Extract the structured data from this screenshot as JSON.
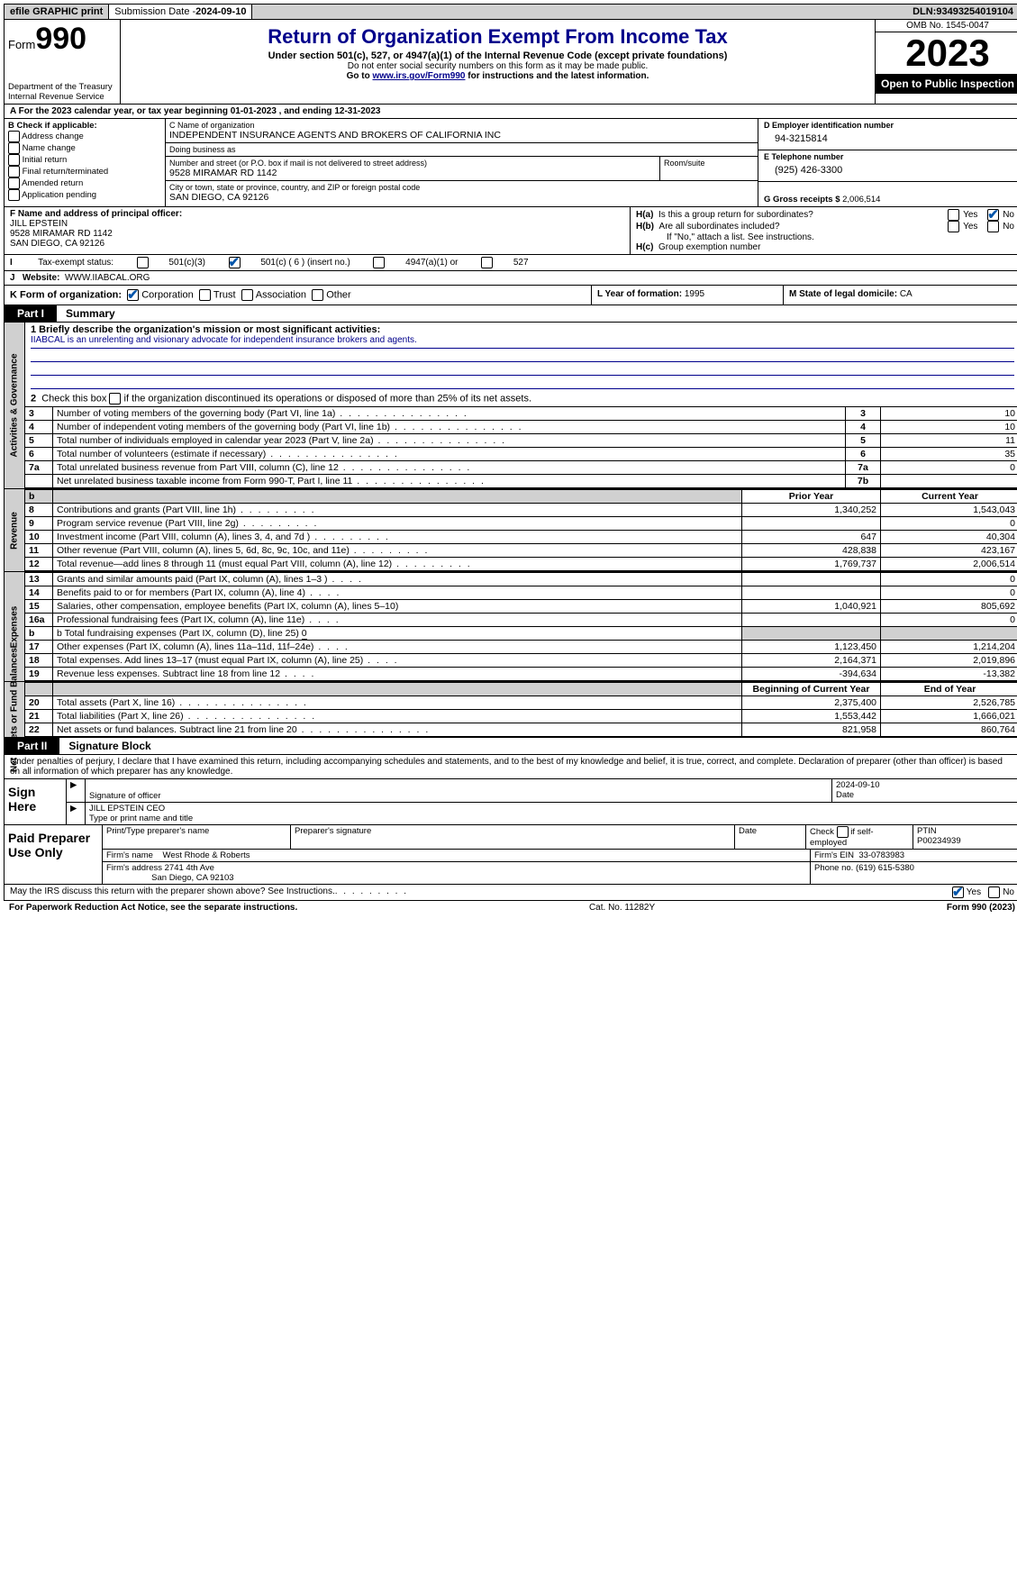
{
  "topbar": {
    "efile": "efile GRAPHIC print",
    "sub_label": "Submission Date - ",
    "sub_date": "2024-09-10",
    "dln_label": "DLN: ",
    "dln": "93493254019104"
  },
  "header": {
    "form_word": "Form",
    "form_num": "990",
    "dept": "Department of the Treasury Internal Revenue Service",
    "title": "Return of Organization Exempt From Income Tax",
    "subtitle": "Under section 501(c), 527, or 4947(a)(1) of the Internal Revenue Code (except private foundations)",
    "note1": "Do not enter social security numbers on this form as it may be made public.",
    "note2_pre": "Go to ",
    "note2_link": "www.irs.gov/Form990",
    "note2_post": " for instructions and the latest information.",
    "omb": "OMB No. 1545-0047",
    "year": "2023",
    "open": "Open to Public Inspection"
  },
  "rowA": "A  For the 2023 calendar year, or tax year beginning 01-01-2023    , and ending 12-31-2023",
  "boxB": {
    "title": "B Check if applicable:",
    "items": [
      "Address change",
      "Name change",
      "Initial return",
      "Final return/terminated",
      "Amended return",
      "Application pending"
    ]
  },
  "boxC": {
    "name_lbl": "C Name of organization",
    "name": "INDEPENDENT INSURANCE AGENTS AND BROKERS OF CALIFORNIA INC",
    "dba_lbl": "Doing business as",
    "dba": "",
    "street_lbl": "Number and street (or P.O. box if mail is not delivered to street address)",
    "street": "9528 MIRAMAR RD 1142",
    "room_lbl": "Room/suite",
    "city_lbl": "City or town, state or province, country, and ZIP or foreign postal code",
    "city": "SAN DIEGO, CA  92126"
  },
  "boxD": {
    "lbl": "D Employer identification number",
    "val": "94-3215814"
  },
  "boxE": {
    "lbl": "E Telephone number",
    "val": "(925) 426-3300"
  },
  "boxG": {
    "lbl": "G Gross receipts $ ",
    "val": "2,006,514"
  },
  "boxF": {
    "lbl": "F  Name and address of principal officer:",
    "name": "JILL EPSTEIN",
    "addr1": "9528 MIRAMAR RD 1142",
    "addr2": "SAN DIEGO, CA  92126"
  },
  "boxH": {
    "a": "H(a)  Is this a group return for subordinates?",
    "b": "H(b)  Are all subordinates included?",
    "b_note": "If \"No,\" attach a list. See instructions.",
    "c": "H(c)  Group exemption number",
    "yes": "Yes",
    "no": "No"
  },
  "rowI": {
    "label": "Tax-exempt status:",
    "o1": "501(c)(3)",
    "o2": "501(c) ( 6 ) (insert no.)",
    "o3": "4947(a)(1) or",
    "o4": "527"
  },
  "rowJ": {
    "label": "Website:",
    "val": "WWW.IIABCAL.ORG"
  },
  "rowK": {
    "label": "K Form of organization:",
    "opts": [
      "Corporation",
      "Trust",
      "Association",
      "Other"
    ],
    "l_label": "L Year of formation: ",
    "l_val": "1995",
    "m_label": "M State of legal domicile: ",
    "m_val": "CA"
  },
  "part1": {
    "tag": "Part I",
    "title": "Summary"
  },
  "gov": {
    "vlabel": "Activities & Governance",
    "line1_lbl": "1   Briefly describe the organization's mission or most significant activities:",
    "line1_val": "IIABCAL is an unrelenting and visionary advocate for independent insurance brokers and agents.",
    "line2": "2   Check this box      if the organization discontinued its operations or disposed of more than 25% of its net assets.",
    "rows": [
      {
        "n": "3",
        "d": "Number of voting members of the governing body (Part VI, line 1a)",
        "k": "3",
        "v": "10"
      },
      {
        "n": "4",
        "d": "Number of independent voting members of the governing body (Part VI, line 1b)",
        "k": "4",
        "v": "10"
      },
      {
        "n": "5",
        "d": "Total number of individuals employed in calendar year 2023 (Part V, line 2a)",
        "k": "5",
        "v": "11"
      },
      {
        "n": "6",
        "d": "Total number of volunteers (estimate if necessary)",
        "k": "6",
        "v": "35"
      },
      {
        "n": "7a",
        "d": "Total unrelated business revenue from Part VIII, column (C), line 12",
        "k": "7a",
        "v": "0"
      },
      {
        "n": "",
        "d": "Net unrelated business taxable income from Form 990-T, Part I, line 11",
        "k": "7b",
        "v": ""
      }
    ]
  },
  "rev": {
    "vlabel": "Revenue",
    "head_prior": "Prior Year",
    "head_curr": "Current Year",
    "rows": [
      {
        "n": "8",
        "d": "Contributions and grants (Part VIII, line 1h)",
        "p": "1,340,252",
        "c": "1,543,043"
      },
      {
        "n": "9",
        "d": "Program service revenue (Part VIII, line 2g)",
        "p": "",
        "c": "0"
      },
      {
        "n": "10",
        "d": "Investment income (Part VIII, column (A), lines 3, 4, and 7d )",
        "p": "647",
        "c": "40,304"
      },
      {
        "n": "11",
        "d": "Other revenue (Part VIII, column (A), lines 5, 6d, 8c, 9c, 10c, and 11e)",
        "p": "428,838",
        "c": "423,167"
      },
      {
        "n": "12",
        "d": "Total revenue—add lines 8 through 11 (must equal Part VIII, column (A), line 12)",
        "p": "1,769,737",
        "c": "2,006,514"
      }
    ]
  },
  "exp": {
    "vlabel": "Expenses",
    "rows": [
      {
        "n": "13",
        "d": "Grants and similar amounts paid (Part IX, column (A), lines 1–3 )",
        "p": "",
        "c": "0",
        "dot": "xs"
      },
      {
        "n": "14",
        "d": "Benefits paid to or for members (Part IX, column (A), line 4)",
        "p": "",
        "c": "0",
        "dot": "xs"
      },
      {
        "n": "15",
        "d": "Salaries, other compensation, employee benefits (Part IX, column (A), lines 5–10)",
        "p": "1,040,921",
        "c": "805,692",
        "dot": ""
      },
      {
        "n": "16a",
        "d": "Professional fundraising fees (Part IX, column (A), line 11e)",
        "p": "",
        "c": "0",
        "dot": "xs"
      }
    ],
    "line_b": "b   Total fundraising expenses (Part IX, column (D), line 25) ",
    "line_b_val": "0",
    "rows2": [
      {
        "n": "17",
        "d": "Other expenses (Part IX, column (A), lines 11a–11d, 11f–24e)",
        "p": "1,123,450",
        "c": "1,214,204"
      },
      {
        "n": "18",
        "d": "Total expenses. Add lines 13–17 (must equal Part IX, column (A), line 25)",
        "p": "2,164,371",
        "c": "2,019,896"
      },
      {
        "n": "19",
        "d": "Revenue less expenses. Subtract line 18 from line 12",
        "p": "-394,634",
        "c": "-13,382"
      }
    ]
  },
  "net": {
    "vlabel": "Net Assets or Fund Balances",
    "head_beg": "Beginning of Current Year",
    "head_end": "End of Year",
    "rows": [
      {
        "n": "20",
        "d": "Total assets (Part X, line 16)",
        "p": "2,375,400",
        "c": "2,526,785"
      },
      {
        "n": "21",
        "d": "Total liabilities (Part X, line 26)",
        "p": "1,553,442",
        "c": "1,666,021"
      },
      {
        "n": "22",
        "d": "Net assets or fund balances. Subtract line 21 from line 20",
        "p": "821,958",
        "c": "860,764"
      }
    ]
  },
  "part2": {
    "tag": "Part II",
    "title": "Signature Block"
  },
  "sig_decl": "Under penalties of perjury, I declare that I have examined this return, including accompanying schedules and statements, and to the best of my knowledge and belief, it is true, correct, and complete. Declaration of preparer (other than officer) is based on all information of which preparer has any knowledge.",
  "sign": {
    "here": "Sign Here",
    "sig_of": "Signature of officer",
    "date": "Date",
    "date_val": "2024-09-10",
    "name": "JILL EPSTEIN  CEO",
    "type": "Type or print name and title"
  },
  "paid": {
    "label": "Paid Preparer Use Only",
    "h1": "Print/Type preparer's name",
    "h2": "Preparer's signature",
    "h3": "Date",
    "h4_pre": "Check",
    "h4_post": "if self-employed",
    "h5": "PTIN",
    "ptin": "P00234939",
    "firm_name_lbl": "Firm's name",
    "firm_name": "West Rhode & Roberts",
    "firm_ein_lbl": "Firm's EIN",
    "firm_ein": "33-0783983",
    "firm_addr_lbl": "Firm's address",
    "firm_addr1": "2741 4th Ave",
    "firm_addr2": "San Diego, CA  92103",
    "phone_lbl": "Phone no.",
    "phone": "(619) 615-5380"
  },
  "footer": {
    "q": "May the IRS discuss this return with the preparer shown above? See Instructions.",
    "yes": "Yes",
    "no": "No",
    "pra": "For Paperwork Reduction Act Notice, see the separate instructions.",
    "cat": "Cat. No. 11282Y",
    "form": "Form 990 (2023)"
  }
}
